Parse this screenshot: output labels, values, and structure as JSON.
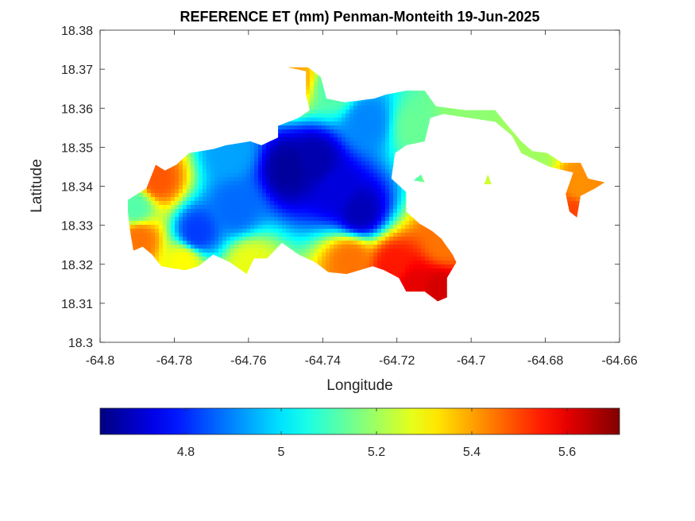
{
  "chart_data": {
    "type": "heatmap",
    "title": "REFERENCE ET (mm) Penman-Monteith 19-Jun-2025",
    "xlabel": "Longitude",
    "ylabel": "Latitude",
    "xlim": [
      -64.8,
      -64.66
    ],
    "ylim": [
      18.3,
      18.38
    ],
    "x_ticks": [
      -64.8,
      -64.78,
      -64.76,
      -64.74,
      -64.72,
      -64.7,
      -64.68,
      -64.66
    ],
    "x_tick_labels": [
      "-64.8",
      "-64.78",
      "-64.76",
      "-64.74",
      "-64.72",
      "-64.7",
      "-64.68",
      "-64.66"
    ],
    "y_ticks": [
      18.3,
      18.31,
      18.32,
      18.33,
      18.34,
      18.35,
      18.36,
      18.37,
      18.38
    ],
    "y_tick_labels": [
      "18.3",
      "18.31",
      "18.32",
      "18.33",
      "18.34",
      "18.35",
      "18.36",
      "18.37",
      "18.38"
    ],
    "grid": false,
    "colormap": "jet",
    "colorbar": {
      "location": "south",
      "clim": [
        4.62,
        5.71
      ],
      "ticks": [
        4.8,
        5.0,
        5.2,
        5.4,
        5.6
      ],
      "tick_labels": [
        "4.8",
        "5",
        "5.2",
        "5.4",
        "5.6"
      ]
    },
    "region_outline": [
      [
        -64.7925,
        18.3365
      ],
      [
        -64.7875,
        18.3395
      ],
      [
        -64.785,
        18.3455
      ],
      [
        -64.7825,
        18.344
      ],
      [
        -64.7795,
        18.3455
      ],
      [
        -64.776,
        18.3485
      ],
      [
        -64.7695,
        18.3495
      ],
      [
        -64.766,
        18.3505
      ],
      [
        -64.7595,
        18.3515
      ],
      [
        -64.7565,
        18.3505
      ],
      [
        -64.752,
        18.3525
      ],
      [
        -64.752,
        18.3555
      ],
      [
        -64.7465,
        18.3575
      ],
      [
        -64.7435,
        18.3595
      ],
      [
        -64.7445,
        18.3635
      ],
      [
        -64.7445,
        18.3695
      ],
      [
        -64.7495,
        18.3705
      ],
      [
        -64.744,
        18.3705
      ],
      [
        -64.7405,
        18.368
      ],
      [
        -64.739,
        18.3625
      ],
      [
        -64.734,
        18.3615
      ],
      [
        -64.726,
        18.3625
      ],
      [
        -64.723,
        18.3635
      ],
      [
        -64.7175,
        18.3645
      ],
      [
        -64.7125,
        18.3645
      ],
      [
        -64.7095,
        18.3605
      ],
      [
        -64.7015,
        18.3595
      ],
      [
        -64.6935,
        18.3595
      ],
      [
        -64.691,
        18.3565
      ],
      [
        -64.6865,
        18.3515
      ],
      [
        -64.6835,
        18.349
      ],
      [
        -64.6795,
        18.3485
      ],
      [
        -64.6755,
        18.346
      ],
      [
        -64.6705,
        18.346
      ],
      [
        -64.6685,
        18.342
      ],
      [
        -64.664,
        18.341
      ],
      [
        -64.6665,
        18.3395
      ],
      [
        -64.6705,
        18.3375
      ],
      [
        -64.6715,
        18.332
      ],
      [
        -64.6735,
        18.3335
      ],
      [
        -64.6745,
        18.338
      ],
      [
        -64.6725,
        18.3435
      ],
      [
        -64.679,
        18.345
      ],
      [
        -64.6865,
        18.3485
      ],
      [
        -64.689,
        18.353
      ],
      [
        -64.6935,
        18.3565
      ],
      [
        -64.7075,
        18.3585
      ],
      [
        -64.711,
        18.3575
      ],
      [
        -64.7125,
        18.3515
      ],
      [
        -64.7175,
        18.3505
      ],
      [
        -64.7205,
        18.3485
      ],
      [
        -64.7215,
        18.342
      ],
      [
        -64.7175,
        18.3385
      ],
      [
        -64.7175,
        18.3335
      ],
      [
        -64.714,
        18.3305
      ],
      [
        -64.7105,
        18.3285
      ],
      [
        -64.708,
        18.3265
      ],
      [
        -64.705,
        18.3225
      ],
      [
        -64.704,
        18.3205
      ],
      [
        -64.7065,
        18.3165
      ],
      [
        -64.7065,
        18.3115
      ],
      [
        -64.709,
        18.3105
      ],
      [
        -64.7125,
        18.313
      ],
      [
        -64.7175,
        18.313
      ],
      [
        -64.7195,
        18.3165
      ],
      [
        -64.7235,
        18.3185
      ],
      [
        -64.7265,
        18.3195
      ],
      [
        -64.7335,
        18.3175
      ],
      [
        -64.7385,
        18.318
      ],
      [
        -64.742,
        18.3205
      ],
      [
        -64.7465,
        18.3225
      ],
      [
        -64.751,
        18.3255
      ],
      [
        -64.755,
        18.3215
      ],
      [
        -64.7585,
        18.3215
      ],
      [
        -64.7605,
        18.3175
      ],
      [
        -64.765,
        18.3205
      ],
      [
        -64.7695,
        18.3225
      ],
      [
        -64.7735,
        18.3195
      ],
      [
        -64.777,
        18.3185
      ],
      [
        -64.7805,
        18.319
      ],
      [
        -64.7835,
        18.3195
      ],
      [
        -64.786,
        18.3225
      ],
      [
        -64.7885,
        18.3245
      ],
      [
        -64.791,
        18.3235
      ],
      [
        -64.792,
        18.329
      ],
      [
        -64.7925,
        18.3335
      ]
    ],
    "islands": [
      [
        [
          -64.6965,
          18.3405
        ],
        [
          -64.6955,
          18.343
        ],
        [
          -64.6945,
          18.3405
        ]
      ],
      [
        [
          -64.7155,
          18.3415
        ],
        [
          -64.7135,
          18.343
        ],
        [
          -64.7125,
          18.341
        ]
      ]
    ],
    "field_centers": [
      {
        "lon": -64.749,
        "lat": 18.3445,
        "value": 4.65
      },
      {
        "lon": -64.742,
        "lat": 18.3465,
        "value": 4.67
      },
      {
        "lon": -64.73,
        "lat": 18.3335,
        "value": 4.68
      },
      {
        "lon": -64.736,
        "lat": 18.339,
        "value": 4.72
      },
      {
        "lon": -64.774,
        "lat": 18.328,
        "value": 4.82
      },
      {
        "lon": -64.7635,
        "lat": 18.3345,
        "value": 4.87
      },
      {
        "lon": -64.765,
        "lat": 18.349,
        "value": 4.93
      },
      {
        "lon": -64.728,
        "lat": 18.3565,
        "value": 4.9
      },
      {
        "lon": -64.737,
        "lat": 18.365,
        "value": 5.12
      },
      {
        "lon": -64.748,
        "lat": 18.3675,
        "value": 5.4
      },
      {
        "lon": -64.715,
        "lat": 18.355,
        "value": 5.14
      },
      {
        "lon": -64.7025,
        "lat": 18.358,
        "value": 5.18
      },
      {
        "lon": -64.684,
        "lat": 18.347,
        "value": 5.2
      },
      {
        "lon": -64.6705,
        "lat": 18.3395,
        "value": 5.42
      },
      {
        "lon": -64.6725,
        "lat": 18.3335,
        "value": 5.5
      },
      {
        "lon": -64.7845,
        "lat": 18.3415,
        "value": 5.48
      },
      {
        "lon": -64.7895,
        "lat": 18.3265,
        "value": 5.45
      },
      {
        "lon": -64.7775,
        "lat": 18.3205,
        "value": 5.3
      },
      {
        "lon": -64.7595,
        "lat": 18.3195,
        "value": 5.28
      },
      {
        "lon": -64.7325,
        "lat": 18.321,
        "value": 5.45
      },
      {
        "lon": -64.721,
        "lat": 18.3195,
        "value": 5.55
      },
      {
        "lon": -64.7085,
        "lat": 18.3135,
        "value": 5.62
      },
      {
        "lon": -64.707,
        "lat": 18.3255,
        "value": 5.45
      },
      {
        "lon": -64.7155,
        "lat": 18.3145,
        "value": 5.6
      },
      {
        "lon": -64.7905,
        "lat": 18.3345,
        "value": 5.12
      }
    ]
  }
}
